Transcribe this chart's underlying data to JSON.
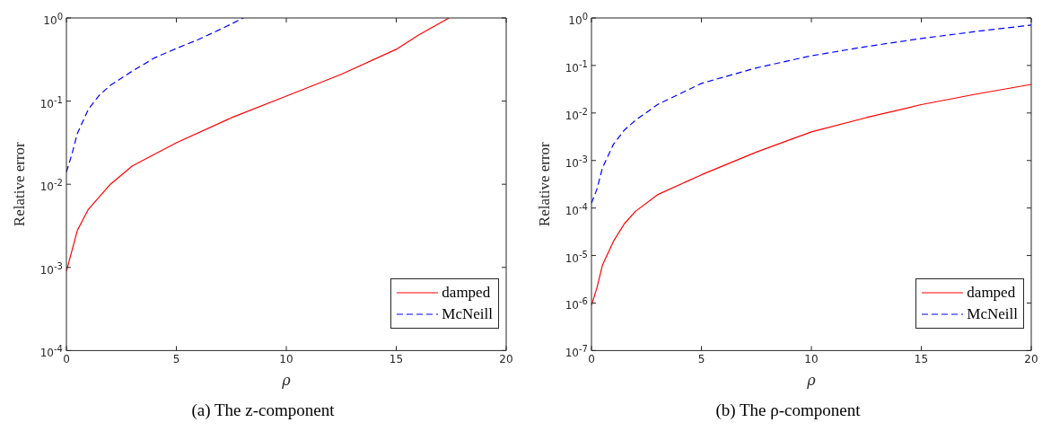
{
  "chart_data": [
    {
      "type": "line",
      "title": "(a) The z-component",
      "xlabel": "ρ",
      "ylabel": "Relative error",
      "log": "y",
      "grid": false,
      "legend": "bottom right",
      "xlim": [
        0,
        20
      ],
      "xticks": [
        0,
        5,
        10,
        15,
        20
      ],
      "ylim": [
        0.0001,
        1
      ],
      "yticks": [
        {
          "value": 0.0001,
          "label": "10$^{-4}$"
        },
        {
          "value": 0.001,
          "label": "10$^{-3}$"
        },
        {
          "value": 0.01,
          "label": "10$^{-2}$"
        },
        {
          "value": 0.1,
          "label": "10$^{-1}$"
        },
        {
          "value": 1,
          "label": "10$^{0}$"
        }
      ],
      "series": [
        {
          "name": "damped",
          "color": "#ff0000",
          "line_style": "solid",
          "x": [
            0,
            0.5,
            1,
            2,
            3,
            5,
            7.5,
            10,
            12.5,
            15,
            16,
            17.4
          ],
          "values": [
            0.0009,
            0.0028,
            0.005,
            0.01,
            0.0166,
            0.0316,
            0.063,
            0.115,
            0.21,
            0.42,
            0.62,
            1
          ]
        },
        {
          "name": "McNeill",
          "color": "#0000ff",
          "line_style": "dashed",
          "x": [
            0,
            0.25,
            0.5,
            1,
            1.5,
            2,
            3,
            4,
            5,
            6,
            7,
            8.05
          ],
          "values": [
            0.014,
            0.023,
            0.041,
            0.08,
            0.118,
            0.155,
            0.23,
            0.33,
            0.43,
            0.55,
            0.73,
            1
          ]
        }
      ]
    },
    {
      "type": "line",
      "title": "(b) The ρ-component",
      "xlabel": "ρ",
      "ylabel": "Relative error",
      "log": "y",
      "grid": false,
      "legend": "bottom right",
      "xlim": [
        0,
        20
      ],
      "xticks": [
        0,
        5,
        10,
        15,
        20
      ],
      "ylim": [
        1e-07,
        1
      ],
      "yticks": [
        {
          "value": 1e-07,
          "label": "10$^{-7}$"
        },
        {
          "value": 1e-06,
          "label": "10$^{-6}$"
        },
        {
          "value": 1e-05,
          "label": "10$^{-5}$"
        },
        {
          "value": 0.0001,
          "label": "10$^{-4}$"
        },
        {
          "value": 0.001,
          "label": "10$^{-3}$"
        },
        {
          "value": 0.01,
          "label": "10$^{-2}$"
        },
        {
          "value": 0.1,
          "label": "10$^{-1}$"
        },
        {
          "value": 1,
          "label": "10$^{0}$"
        }
      ],
      "series": [
        {
          "name": "damped",
          "color": "#ff0000",
          "line_style": "solid",
          "x": [
            0,
            0.25,
            0.5,
            1,
            1.5,
            2,
            3,
            5,
            7.5,
            10,
            12.5,
            15,
            17.5,
            20
          ],
          "values": [
            9e-07,
            2.1e-06,
            6.3e-06,
            2e-05,
            4.7e-05,
            8.5e-05,
            0.00019,
            0.0005,
            0.0015,
            0.004,
            0.008,
            0.015,
            0.025,
            0.04
          ]
        },
        {
          "name": "McNeill",
          "color": "#0000ff",
          "line_style": "dashed",
          "x": [
            0,
            0.25,
            0.5,
            1,
            1.5,
            2,
            3,
            5,
            7.5,
            10,
            12.5,
            15,
            17.5,
            20
          ],
          "values": [
            0.000126,
            0.00025,
            0.0007,
            0.0022,
            0.0044,
            0.007,
            0.015,
            0.042,
            0.089,
            0.16,
            0.25,
            0.37,
            0.52,
            0.71
          ]
        }
      ]
    }
  ]
}
